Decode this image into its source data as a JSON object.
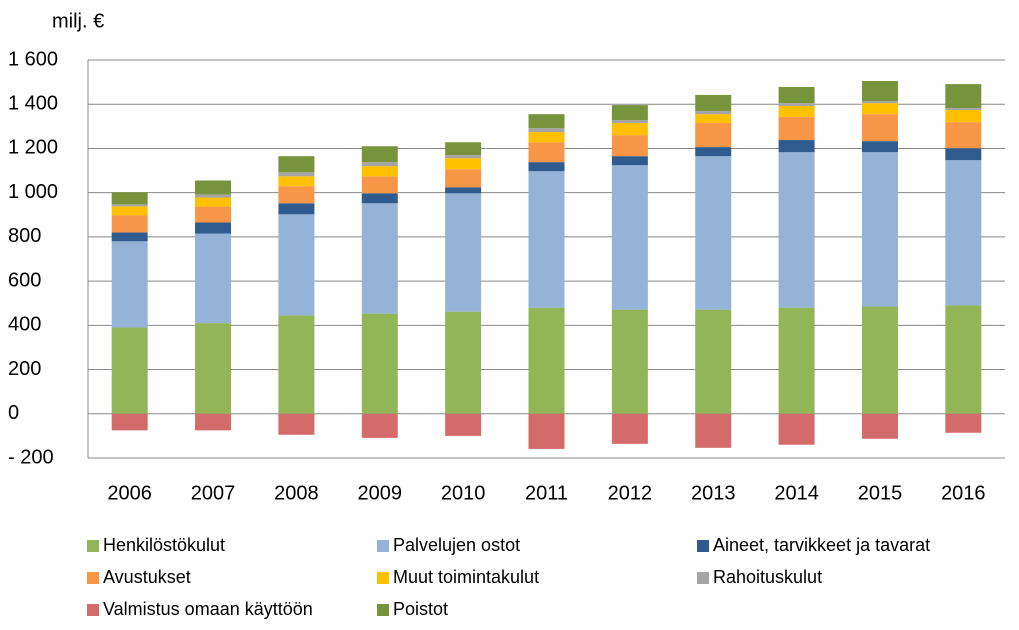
{
  "chart_data": {
    "type": "stacked_bar",
    "y_label": "milj. €",
    "categories": [
      "2006",
      "2007",
      "2008",
      "2009",
      "2010",
      "2011",
      "2012",
      "2013",
      "2014",
      "2015",
      "2016"
    ],
    "ylim": [
      -200,
      1600
    ],
    "yticks": [
      {
        "value": -200,
        "label": "- 200"
      },
      0,
      200,
      400,
      600,
      800,
      {
        "value": 1000,
        "label": "1 000"
      },
      {
        "value": 1200,
        "label": "1 200"
      },
      {
        "value": 1400,
        "label": "1 400"
      },
      {
        "value": 1600,
        "label": "1 600"
      }
    ],
    "grid": true,
    "legend": "bottom",
    "series": [
      {
        "name": "Henkilöstökulut",
        "color": "#92b558",
        "values": [
          390,
          410,
          445,
          453,
          462,
          480,
          471,
          471,
          480,
          485,
          490
        ]
      },
      {
        "name": "Palvelujen ostot",
        "color": "#95b3d7",
        "values": [
          390,
          405,
          457,
          499,
          535,
          617,
          653,
          694,
          703,
          698,
          657
        ]
      },
      {
        "name": "Aineet, tarvikkeet ja tavarat",
        "color": "#2f5b8f",
        "values": [
          40,
          50,
          50,
          45,
          27,
          41,
          41,
          41,
          55,
          50,
          54
        ]
      },
      {
        "name": "Avustukset",
        "color": "#f79646",
        "values": [
          77,
          72,
          77,
          77,
          82,
          90,
          95,
          109,
          104,
          122,
          118
        ]
      },
      {
        "name": "Muut toimintakulut",
        "color": "#ffc000",
        "values": [
          41,
          41,
          45,
          46,
          50,
          46,
          55,
          40,
          50,
          50,
          55
        ]
      },
      {
        "name": "Rahoituskulut",
        "color": "#a5a5a5",
        "values": [
          9,
          14,
          18,
          18,
          14,
          18,
          13,
          14,
          13,
          9,
          9
        ]
      },
      {
        "name": "Valmistus omaan käyttöön",
        "color": "#d46b6b",
        "values": [
          -75,
          -75,
          -95,
          -109,
          -100,
          -159,
          -136,
          -154,
          -140,
          -113,
          -86
        ]
      },
      {
        "name": "Poistot",
        "color": "#77933c",
        "values": [
          55,
          63,
          73,
          72,
          58,
          63,
          68,
          73,
          73,
          91,
          108
        ]
      }
    ]
  }
}
